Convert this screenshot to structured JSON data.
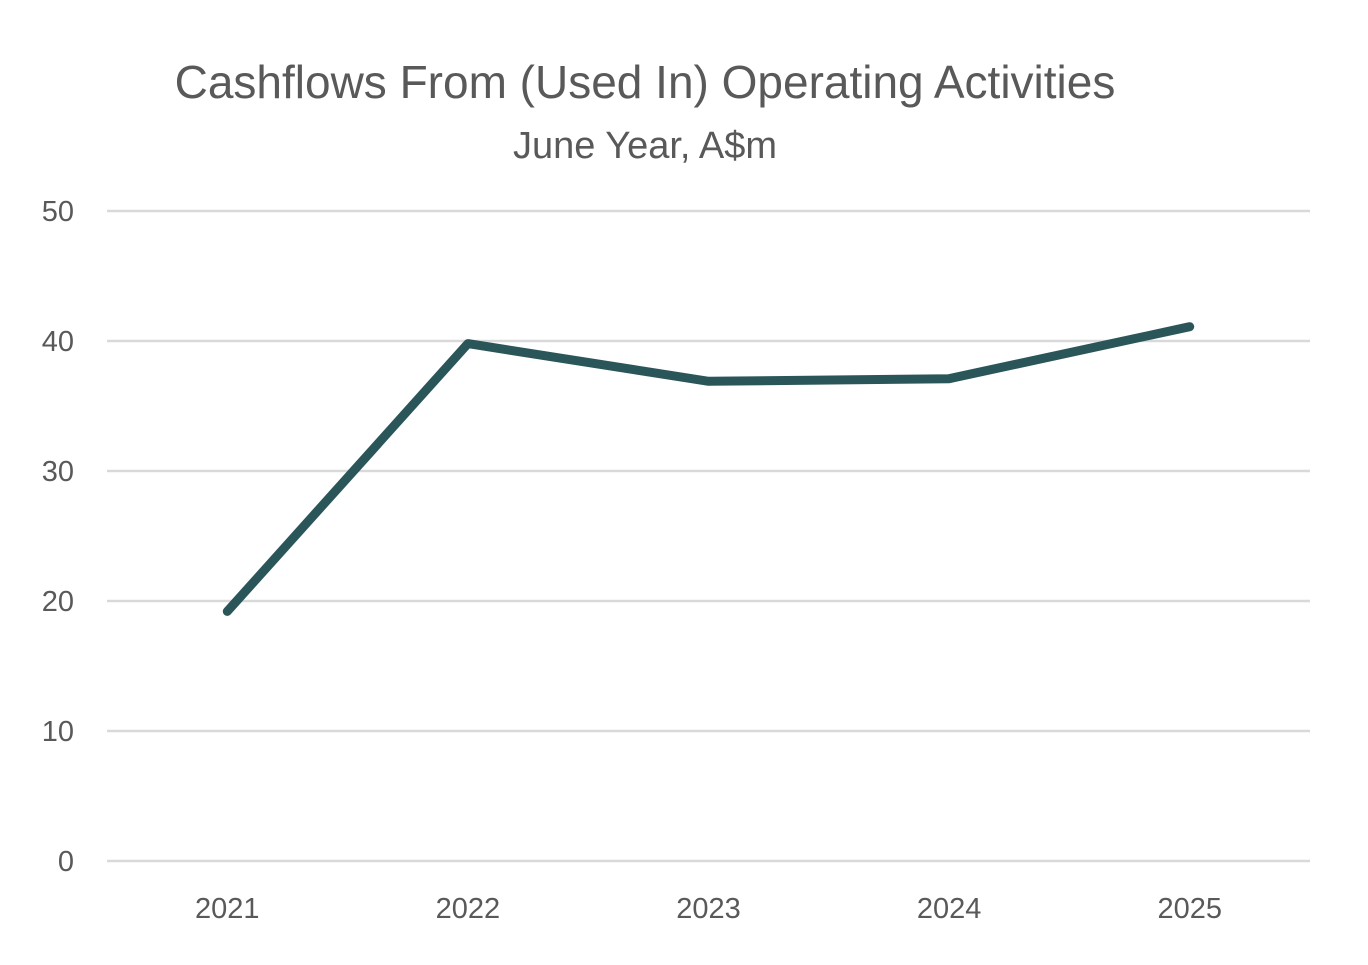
{
  "chart_data": {
    "type": "line",
    "title": "Cashflows From (Used In) Operating Activities",
    "subtitle": "June Year, A$m",
    "xlabel": "",
    "ylabel": "",
    "categories": [
      "2021",
      "2022",
      "2023",
      "2024",
      "2025"
    ],
    "series": [
      {
        "values": [
          19.2,
          39.8,
          36.9,
          37.1,
          41.1
        ],
        "color": "#2b5659"
      }
    ],
    "ylim": [
      0,
      50
    ],
    "yticks": [
      "0",
      "10",
      "20",
      "30",
      "40",
      "50"
    ],
    "grid": true,
    "legend": "none"
  },
  "colors": {
    "text": "#595959",
    "grid": "#d9d9d9",
    "line": "#2b5659"
  }
}
